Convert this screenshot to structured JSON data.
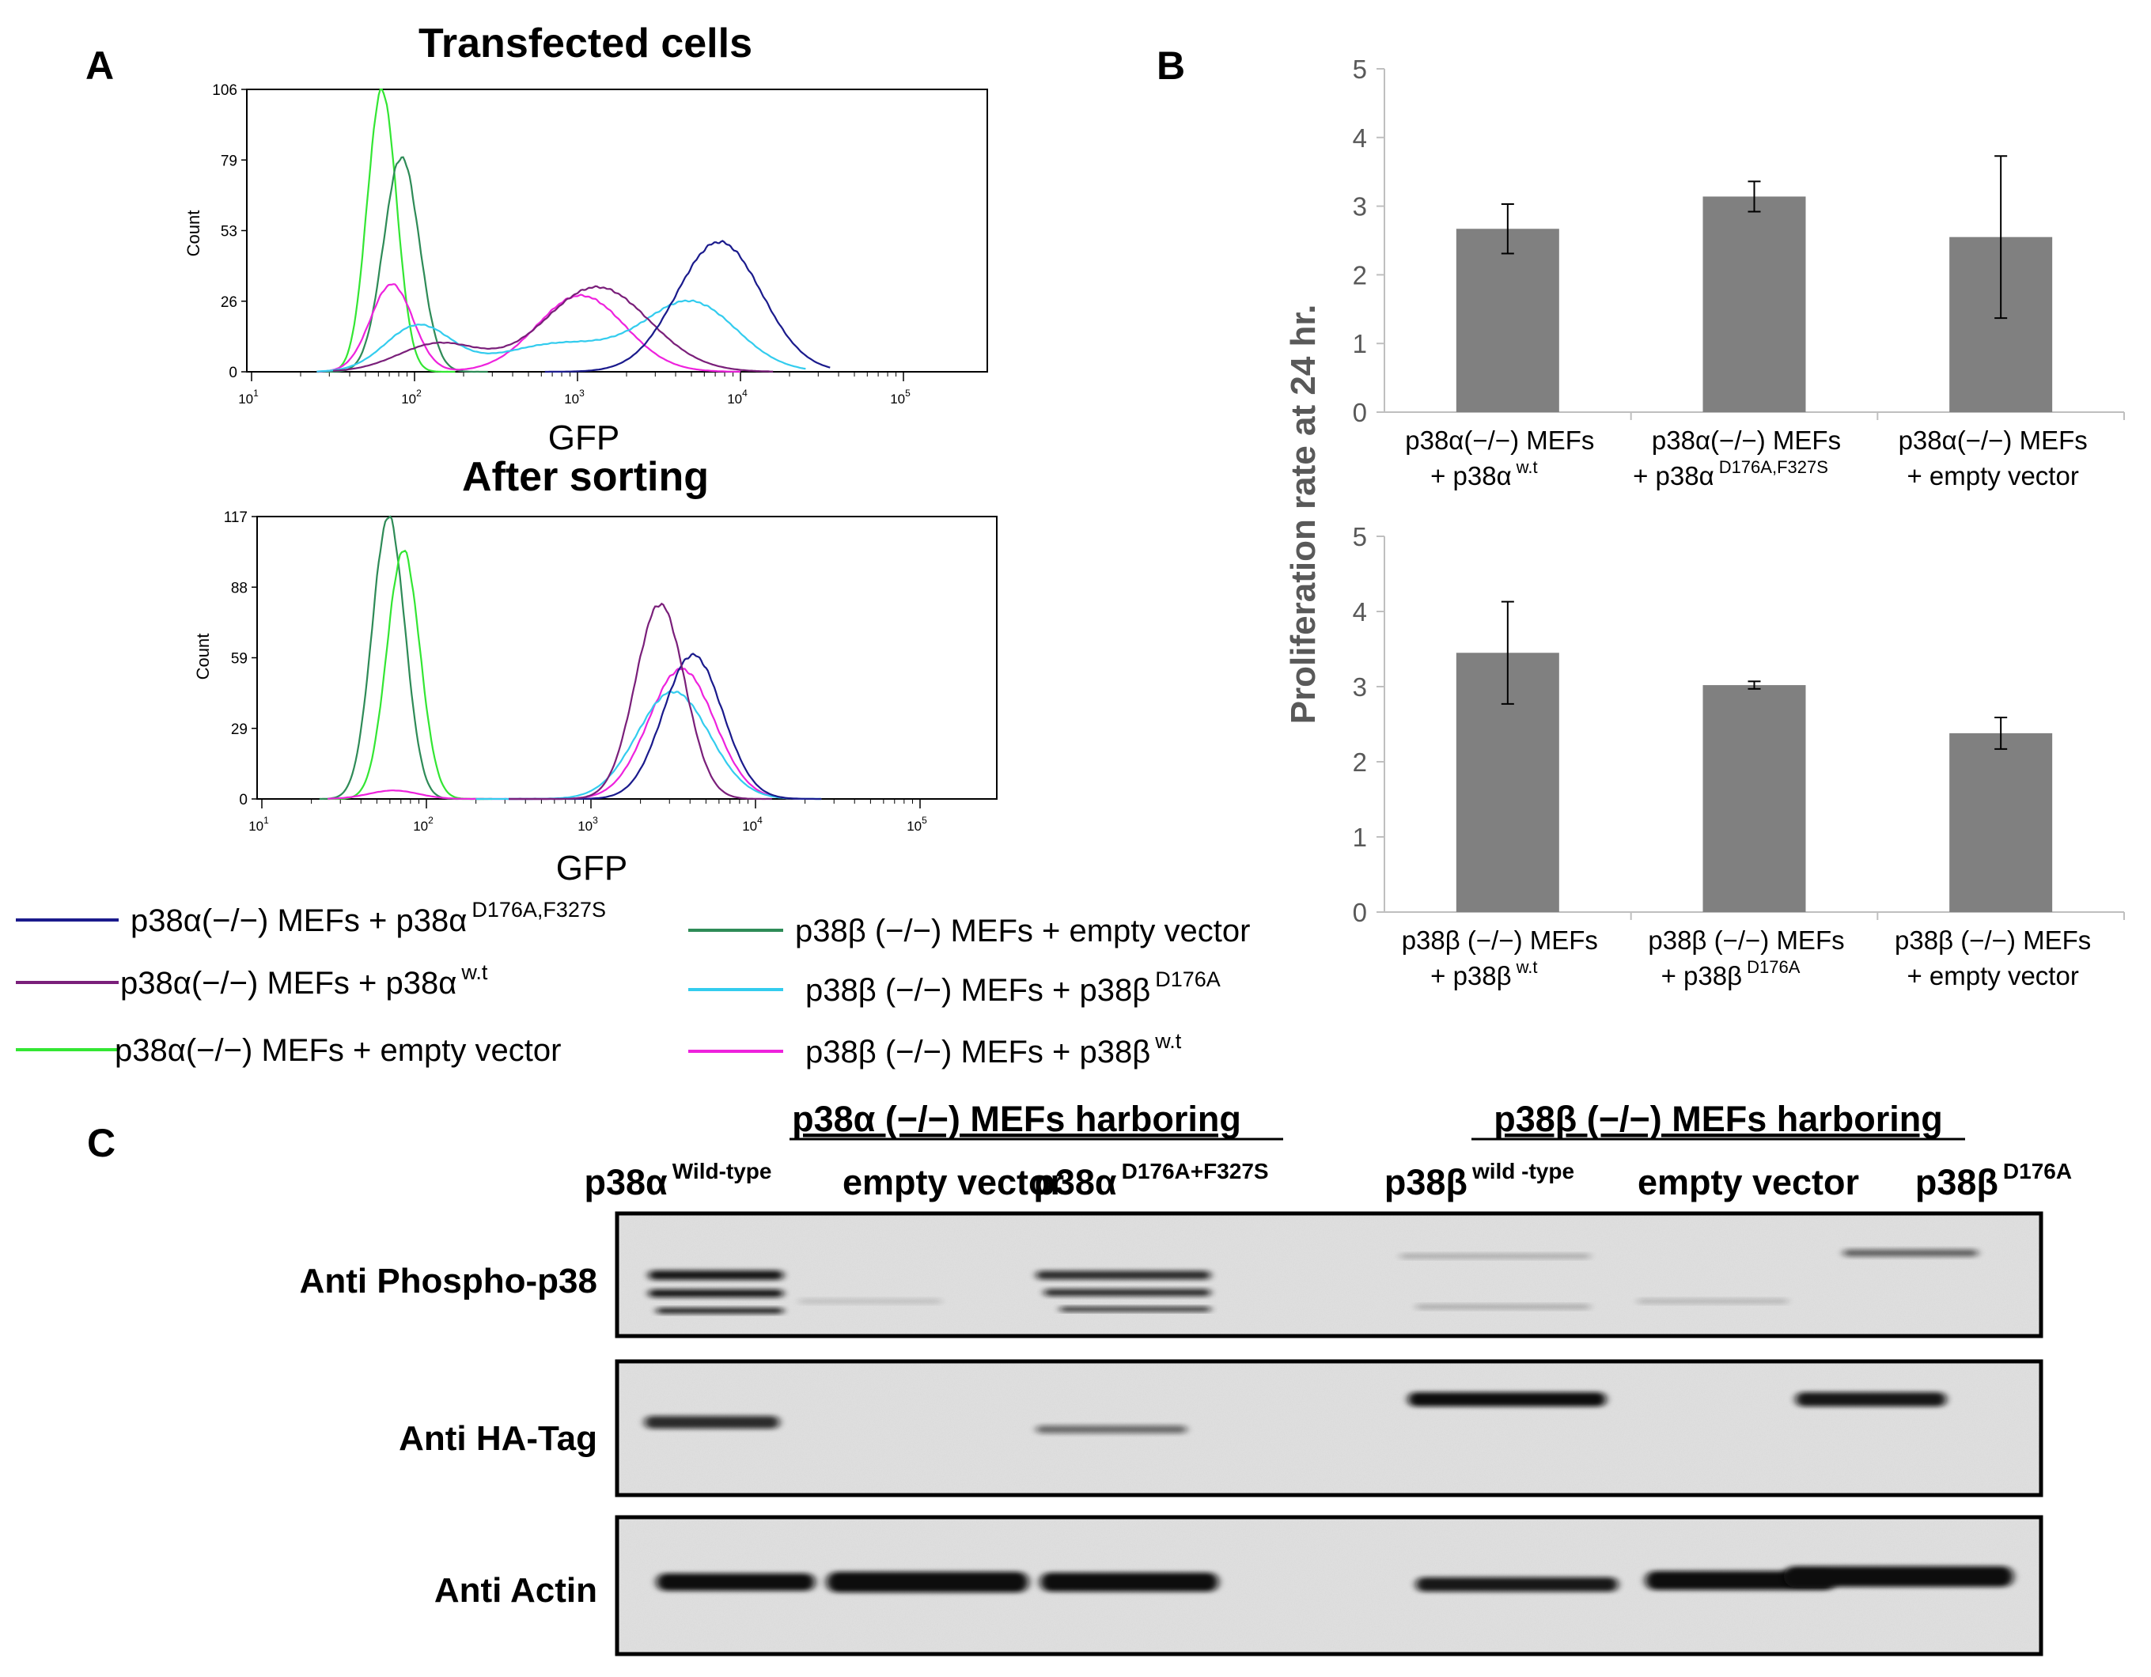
{
  "panel_labels": {
    "a": "A",
    "b": "B",
    "c": "C"
  },
  "colors": {
    "navy": "#1a1a8c",
    "purple": "#7a1f7a",
    "green": "#33e633",
    "dark_green": "#2e8b57",
    "cyan": "#33ccee",
    "magenta": "#ee22dd",
    "bar": "#808080"
  },
  "flow": {
    "transfected": {
      "title": "Transfected cells",
      "y_label": "Count",
      "x_label": "GFP",
      "y_ticks": [
        "0",
        "26",
        "53",
        "79",
        "106"
      ],
      "x_ticks": [
        {
          "base": "10",
          "exp": "1"
        },
        {
          "base": "10",
          "exp": "2"
        },
        {
          "base": "10",
          "exp": "3"
        },
        {
          "base": "10",
          "exp": "4"
        },
        {
          "base": "10",
          "exp": "5"
        }
      ]
    },
    "sorted": {
      "title": "After sorting",
      "y_label": "Count",
      "x_label": "GFP",
      "y_ticks": [
        "0",
        "29",
        "59",
        "88",
        "117"
      ],
      "x_ticks": [
        {
          "base": "10",
          "exp": "1"
        },
        {
          "base": "10",
          "exp": "2"
        },
        {
          "base": "10",
          "exp": "3"
        },
        {
          "base": "10",
          "exp": "4"
        },
        {
          "base": "10",
          "exp": "5"
        }
      ]
    }
  },
  "legend": [
    {
      "text": "p38α(−/−) MEFs + p38α",
      "sup": "D176A,F327S",
      "color": "#1a1a8c"
    },
    {
      "text": "p38α(−/−) MEFs + p38α",
      "sup": "w.t",
      "color": "#7a1f7a"
    },
    {
      "text": "p38α(−/−) MEFs +  empty vector",
      "sup": "",
      "color": "#33e633"
    },
    {
      "text": "p38β (−/−) MEFs + empty vector",
      "sup": "",
      "color": "#2e8b57"
    },
    {
      "text": "p38β (−/−) MEFs + p38β",
      "sup": "D176A",
      "color": "#33ccee"
    },
    {
      "text": "p38β (−/−) MEFs + p38β",
      "sup": "w.t",
      "color": "#ee22dd"
    }
  ],
  "chart_data": [
    {
      "type": "bar",
      "title": "",
      "ylabel": "Proliferation rate at 24 hr.",
      "ylim": [
        0,
        5
      ],
      "yticks": [
        0,
        1,
        2,
        3,
        4,
        5
      ],
      "categories": [
        {
          "line1": "p38α(−/−) MEFs",
          "line2": "+ p38α",
          "sup": "w.t"
        },
        {
          "line1": "p38α(−/−) MEFs",
          "line2": "+ p38α",
          "sup": "D176A,F327S"
        },
        {
          "line1": "p38α(−/−) MEFs",
          "line2": "+  empty  vector",
          "sup": ""
        }
      ],
      "values": [
        2.67,
        3.14,
        2.55
      ],
      "errors": [
        0.36,
        0.22,
        1.18
      ]
    },
    {
      "type": "bar",
      "title": "",
      "ylabel": "Proliferation rate at 24 hr.",
      "ylim": [
        0,
        5
      ],
      "yticks": [
        0,
        1,
        2,
        3,
        4,
        5
      ],
      "categories": [
        {
          "line1": "p38β (−/−) MEFs",
          "line2": "+ p38β",
          "sup": "w.t"
        },
        {
          "line1": "p38β (−/−) MEFs",
          "line2": "+ p38β",
          "sup": "D176A"
        },
        {
          "line1": "p38β (−/−) MEFs",
          "line2": "+ empty vector",
          "sup": ""
        }
      ],
      "values": [
        3.45,
        3.02,
        2.38
      ],
      "errors": [
        0.68,
        0.05,
        0.21
      ]
    }
  ],
  "blot": {
    "group_a": "p38α (−/−) MEFs harboring",
    "group_b": "p38β (−/−) MEFs harboring",
    "lanes": [
      {
        "base": "p38α",
        "sup": "Wild-type"
      },
      {
        "base": "empty vector",
        "sup": ""
      },
      {
        "base": "p38α",
        "sup": "D176A+F327S"
      },
      {
        "base": "p38β",
        "sup": "wild -type"
      },
      {
        "base": "empty vector",
        "sup": ""
      },
      {
        "base": "p38β",
        "sup": "D176A"
      }
    ],
    "rows": [
      {
        "label": "Anti Phospho-p38",
        "intensity": [
          0.95,
          0.15,
          0.85,
          0.25,
          0.2,
          0.6
        ]
      },
      {
        "label": "Anti HA-Tag",
        "intensity": [
          0.85,
          0.0,
          0.55,
          1.0,
          0.0,
          0.95
        ]
      },
      {
        "label": "Anti Actin",
        "intensity": [
          1.0,
          1.0,
          1.0,
          0.95,
          1.0,
          1.0
        ]
      }
    ]
  }
}
